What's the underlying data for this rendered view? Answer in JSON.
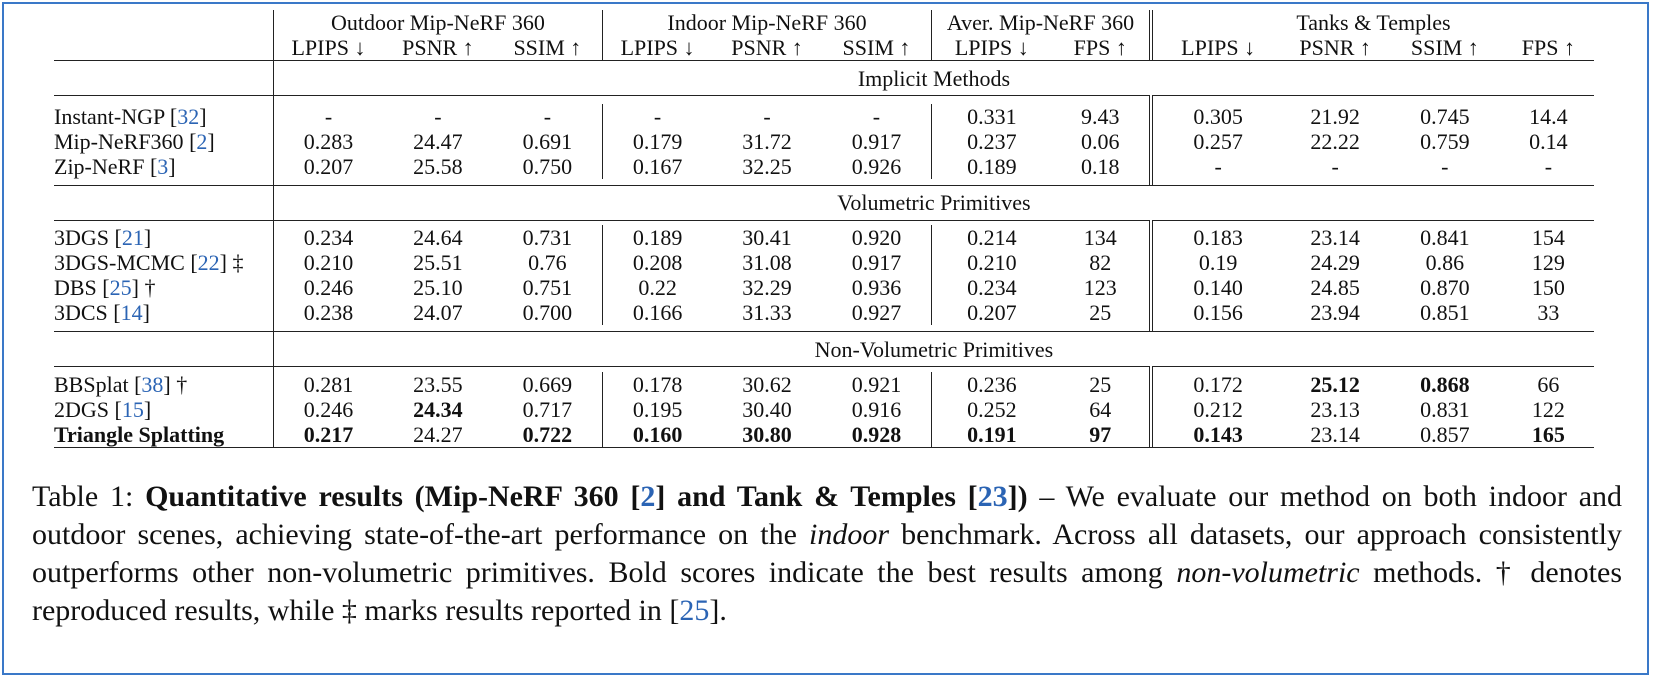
{
  "header": {
    "groups": [
      "Outdoor Mip-NeRF 360",
      "Indoor Mip-NeRF 360",
      "Aver. Mip-NeRF 360",
      "Tanks & Temples"
    ],
    "metrics": [
      "LPIPS ↓",
      "PSNR ↑",
      "SSIM ↑",
      "LPIPS ↓",
      "PSNR ↑",
      "SSIM ↑",
      "LPIPS ↓",
      "FPS ↑",
      "LPIPS ↓",
      "PSNR ↑",
      "SSIM ↑",
      "FPS ↑"
    ]
  },
  "sections": {
    "implicit": "Implicit Methods",
    "volumetric": "Volumetric Primitives",
    "nonvolumetric": "Non-Volumetric Primitives"
  },
  "rows": {
    "instant_ngp": {
      "name": "Instant-NGP",
      "ref": "32",
      "mark": "",
      "v": [
        "-",
        "-",
        "-",
        "-",
        "-",
        "-",
        "0.331",
        "9.43",
        "0.305",
        "21.92",
        "0.745",
        "14.4"
      ]
    },
    "mipnerf360": {
      "name": "Mip-NeRF360",
      "ref": "2",
      "mark": "",
      "v": [
        "0.283",
        "24.47",
        "0.691",
        "0.179",
        "31.72",
        "0.917",
        "0.237",
        "0.06",
        "0.257",
        "22.22",
        "0.759",
        "0.14"
      ]
    },
    "zipnerf": {
      "name": "Zip-NeRF",
      "ref": "3",
      "mark": "",
      "v": [
        "0.207",
        "25.58",
        "0.750",
        "0.167",
        "32.25",
        "0.926",
        "0.189",
        "0.18",
        "-",
        "-",
        "-",
        "-"
      ]
    },
    "gs3d": {
      "name": "3DGS",
      "ref": "21",
      "mark": "",
      "v": [
        "0.234",
        "24.64",
        "0.731",
        "0.189",
        "30.41",
        "0.920",
        "0.214",
        "134",
        "0.183",
        "23.14",
        "0.841",
        "154"
      ]
    },
    "gs3d_mcmc": {
      "name": "3DGS-MCMC",
      "ref": "22",
      "mark": "‡",
      "v": [
        "0.210",
        "25.51",
        "0.76",
        "0.208",
        "31.08",
        "0.917",
        "0.210",
        "82",
        "0.19",
        "24.29",
        "0.86",
        "129"
      ]
    },
    "dbs": {
      "name": "DBS",
      "ref": "25",
      "mark": "†",
      "v": [
        "0.246",
        "25.10",
        "0.751",
        "0.22",
        "32.29",
        "0.936",
        "0.234",
        "123",
        "0.140",
        "24.85",
        "0.870",
        "150"
      ]
    },
    "cs3d": {
      "name": "3DCS",
      "ref": "14",
      "mark": "",
      "v": [
        "0.238",
        "24.07",
        "0.700",
        "0.166",
        "31.33",
        "0.927",
        "0.207",
        "25",
        "0.156",
        "23.94",
        "0.851",
        "33"
      ]
    },
    "bbsplat": {
      "name": "BBSplat",
      "ref": "38",
      "mark": "†",
      "v": [
        "0.281",
        "23.55",
        "0.669",
        "0.178",
        "30.62",
        "0.921",
        "0.236",
        "25",
        "0.172",
        "25.12",
        "0.868",
        "66"
      ]
    },
    "gs2d": {
      "name": "2DGS",
      "ref": "15",
      "mark": "",
      "v": [
        "0.246",
        "24.34",
        "0.717",
        "0.195",
        "30.40",
        "0.916",
        "0.252",
        "64",
        "0.212",
        "23.13",
        "0.831",
        "122"
      ]
    },
    "triangle": {
      "name": "Triangle Splatting",
      "ref": "",
      "mark": "",
      "v": [
        "0.217",
        "24.27",
        "0.722",
        "0.160",
        "30.80",
        "0.928",
        "0.191",
        "97",
        "0.143",
        "23.14",
        "0.857",
        "165"
      ]
    }
  },
  "caption": {
    "label": "Table 1:",
    "title_a": "Quantitative results (Mip-NeRF 360 [",
    "ref1": "2",
    "title_b": "] and Tank & Temples [",
    "ref2": "23",
    "title_c": "])",
    "dash": " – ",
    "t1": "We evaluate our method on both indoor and outdoor scenes, achieving state-of-the-art performance on the ",
    "i1": "indoor",
    "t2": " benchmark. Across all datasets, our approach consistently outperforms other non-volumetric primitives. Bold scores indicate the best results among ",
    "i2": "non-volumetric",
    "t3": " methods. † denotes reproduced results, while ‡ marks results reported in [",
    "ref3": "25",
    "t4": "]."
  },
  "colors": {
    "frame": "#3a78c8",
    "ref": "#2b64b4"
  }
}
